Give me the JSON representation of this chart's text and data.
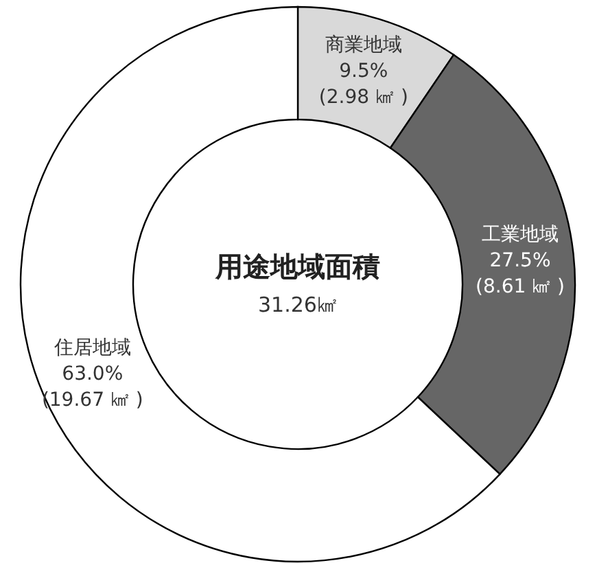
{
  "chart_data": {
    "type": "donut",
    "title": "用途地域面積",
    "subtitle": "31.26㎢",
    "categories": [
      "商業地域",
      "工業地域",
      "住居地域"
    ],
    "values": [
      9.5,
      27.5,
      63.0
    ],
    "value_labels": [
      "9.5%\n(2.98 ㎢ )",
      "27.5%\n(8.61 ㎢ )",
      "63.0%\n(19.67 ㎢ )"
    ],
    "colors": [
      "#d9d9d9",
      "#666666",
      "#ffffff"
    ]
  }
}
